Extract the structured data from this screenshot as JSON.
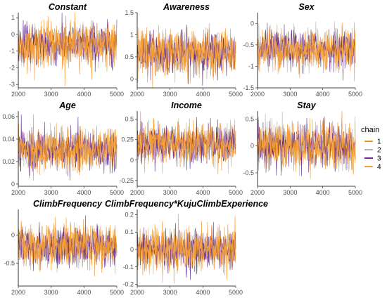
{
  "chart_data": {
    "type": "line",
    "description": "MCMC trace plots, 4 chains, iterations 2000-5000",
    "legend": {
      "title": "chain",
      "position": "right",
      "entries": [
        {
          "label": "1",
          "color": "#F28E2B"
        },
        {
          "label": "2",
          "color": "#B8B0A6"
        },
        {
          "label": "3",
          "color": "#5E2C91"
        },
        {
          "label": "4",
          "color": "#F7A036"
        }
      ]
    },
    "x": {
      "min": 2000,
      "max": 5000,
      "ticks": [
        2000,
        3000,
        4000,
        5000
      ]
    },
    "panels": [
      {
        "title": "Constant",
        "ylim": [
          -3.2,
          1.3
        ],
        "yticks": [
          1,
          0,
          -1,
          -2,
          -3
        ],
        "mean": -0.6,
        "sd": 0.62
      },
      {
        "title": "Awareness",
        "ylim": [
          -0.2,
          1.5
        ],
        "yticks": [
          1.5,
          1.0,
          0.5,
          0.0
        ],
        "mean": 0.6,
        "sd": 0.24
      },
      {
        "title": "Sex",
        "ylim": [
          -1.5,
          0.25
        ],
        "yticks": [
          0.0,
          -0.5,
          -1.0,
          -1.5
        ],
        "mean": -0.6,
        "sd": 0.22
      },
      {
        "title": "Age",
        "ylim": [
          -0.002,
          0.065
        ],
        "yticks": [
          0.06,
          0.04,
          0.02,
          0.0
        ],
        "mean": 0.03,
        "sd": 0.009
      },
      {
        "title": "Income",
        "ylim": [
          -0.32,
          0.6
        ],
        "yticks": [
          0.5,
          0.25,
          0.0,
          -0.25
        ],
        "mean": 0.2,
        "sd": 0.12
      },
      {
        "title": "Stay",
        "ylim": [
          -0.75,
          0.65
        ],
        "yticks": [
          0.5,
          0.0,
          -0.5
        ],
        "mean": 0.0,
        "sd": 0.2
      },
      {
        "title": "ClimbFrequency",
        "ylim": [
          -0.9,
          0.45
        ],
        "yticks": [
          0.0,
          -0.5
        ],
        "mean": -0.2,
        "sd": 0.18
      },
      {
        "title": "ClimbFrequency*KujuClimbExperience",
        "ylim": [
          -0.21,
          0.23
        ],
        "yticks": [
          0.2,
          0.1,
          0.0,
          -0.1,
          -0.2
        ],
        "mean": 0.0,
        "sd": 0.058
      }
    ]
  }
}
